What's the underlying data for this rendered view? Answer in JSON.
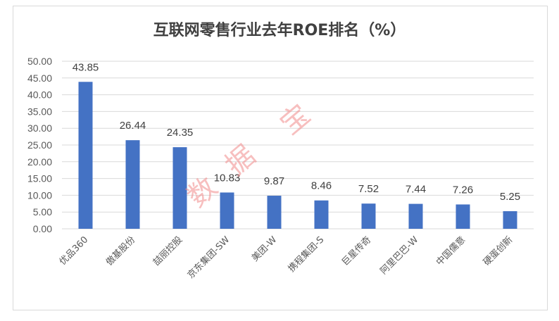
{
  "chart_data": {
    "type": "bar",
    "title": "互联网零售行业去年ROE排名（%）",
    "xlabel": "",
    "ylabel": "",
    "categories": [
      "优品360",
      "傲基股份",
      "喆丽控股",
      "京东集团-SW",
      "美团-W",
      "携程集团-S",
      "巨星传奇",
      "阿里巴巴-W",
      "中国儒意",
      "硬蛋创新"
    ],
    "values": [
      43.85,
      26.44,
      24.35,
      10.83,
      9.87,
      8.46,
      7.52,
      7.44,
      7.26,
      5.25
    ],
    "data_labels": [
      "43.85",
      "26.44",
      "24.35",
      "10.83",
      "9.87",
      "8.46",
      "7.52",
      "7.44",
      "7.26",
      "5.25"
    ],
    "ylim": [
      0,
      50
    ],
    "yticks": [
      0,
      5,
      10,
      15,
      20,
      25,
      30,
      35,
      40,
      45,
      50
    ],
    "ytick_labels": [
      "0.00",
      "5.00",
      "10.00",
      "15.00",
      "20.00",
      "25.00",
      "30.00",
      "35.00",
      "40.00",
      "45.00",
      "50.00"
    ],
    "grid": true,
    "legend": "none",
    "bar_color": "#4472c4"
  },
  "watermark": {
    "chars": [
      "数",
      "据",
      "宝"
    ],
    "color": "#f28b8b"
  }
}
